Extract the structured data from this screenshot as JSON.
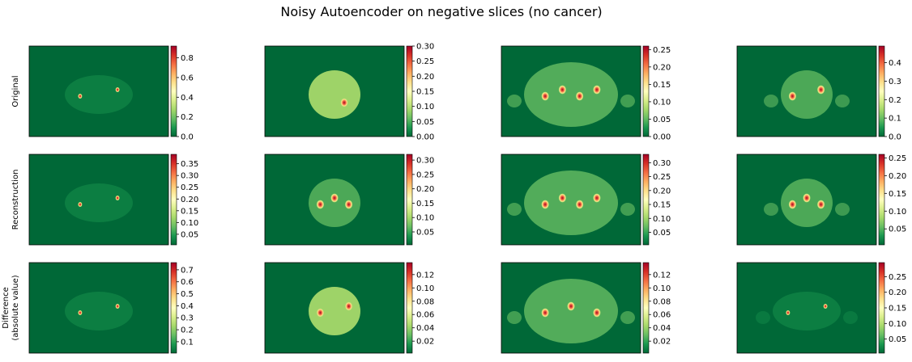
{
  "figure": {
    "title": "Noisy Autoencoder on negative slices (no cancer)"
  },
  "row_labels": [
    "Original",
    "Reconstruction",
    "Difference\n(absolute value)"
  ],
  "colormap": {
    "name": "RdYlGn_r",
    "stops": [
      "#006837",
      "#1a9850",
      "#66bd63",
      "#a6d96a",
      "#d9ef8b",
      "#ffffbf",
      "#fee08b",
      "#fdae61",
      "#f46d43",
      "#d73027",
      "#a50026"
    ]
  },
  "panels": [
    [
      {
        "vmin": 0,
        "vmax": 0.92,
        "ticks": [
          "0.0",
          "0.2",
          "0.4",
          "0.6",
          "0.8"
        ],
        "tick_values": [
          0,
          0.2,
          0.4,
          0.6,
          0.8
        ],
        "body": "faint",
        "hotspots": 2
      },
      {
        "vmin": 0,
        "vmax": 0.3,
        "ticks": [
          "0.00",
          "0.05",
          "0.10",
          "0.15",
          "0.20",
          "0.25",
          "0.30"
        ],
        "tick_values": [
          0,
          0.05,
          0.1,
          0.15,
          0.2,
          0.25,
          0.3
        ],
        "body": "bright",
        "hotspots": 1
      },
      {
        "vmin": 0,
        "vmax": 0.26,
        "ticks": [
          "0.00",
          "0.05",
          "0.10",
          "0.15",
          "0.20",
          "0.25"
        ],
        "tick_values": [
          0,
          0.05,
          0.1,
          0.15,
          0.2,
          0.25
        ],
        "body": "wide",
        "hotspots": 4
      },
      {
        "vmin": 0,
        "vmax": 0.49,
        "ticks": [
          "0.0",
          "0.1",
          "0.2",
          "0.3",
          "0.4"
        ],
        "tick_values": [
          0,
          0.1,
          0.2,
          0.3,
          0.4
        ],
        "body": "medium",
        "hotspots": 2
      }
    ],
    [
      {
        "vmin": 0.005,
        "vmax": 0.39,
        "ticks": [
          "0.05",
          "0.10",
          "0.15",
          "0.20",
          "0.25",
          "0.30",
          "0.35"
        ],
        "tick_values": [
          0.05,
          0.1,
          0.15,
          0.2,
          0.25,
          0.3,
          0.35
        ],
        "body": "faint",
        "hotspots": 2
      },
      {
        "vmin": 0.005,
        "vmax": 0.32,
        "ticks": [
          "0.05",
          "0.10",
          "0.15",
          "0.20",
          "0.25",
          "0.30"
        ],
        "tick_values": [
          0.05,
          0.1,
          0.15,
          0.2,
          0.25,
          0.3
        ],
        "body": "medium",
        "hotspots": 3
      },
      {
        "vmin": 0.005,
        "vmax": 0.33,
        "ticks": [
          "0.05",
          "0.10",
          "0.15",
          "0.20",
          "0.25",
          "0.30"
        ],
        "tick_values": [
          0.05,
          0.1,
          0.15,
          0.2,
          0.25,
          0.3
        ],
        "body": "wide",
        "hotspots": 4
      },
      {
        "vmin": 0.005,
        "vmax": 0.26,
        "ticks": [
          "0.05",
          "0.10",
          "0.15",
          "0.20",
          "0.25"
        ],
        "tick_values": [
          0.05,
          0.1,
          0.15,
          0.2,
          0.25
        ],
        "body": "medium",
        "hotspots": 3
      }
    ],
    [
      {
        "vmin": 0.005,
        "vmax": 0.76,
        "ticks": [
          "0.1",
          "0.2",
          "0.3",
          "0.4",
          "0.5",
          "0.6",
          "0.7"
        ],
        "tick_values": [
          0.1,
          0.2,
          0.3,
          0.4,
          0.5,
          0.6,
          0.7
        ],
        "body": "faint",
        "hotspots": 2
      },
      {
        "vmin": 0.002,
        "vmax": 0.138,
        "ticks": [
          "0.02",
          "0.04",
          "0.06",
          "0.08",
          "0.10",
          "0.12"
        ],
        "tick_values": [
          0.02,
          0.04,
          0.06,
          0.08,
          0.1,
          0.12
        ],
        "body": "bright",
        "hotspots": 2
      },
      {
        "vmin": 0.002,
        "vmax": 0.138,
        "ticks": [
          "0.02",
          "0.04",
          "0.06",
          "0.08",
          "0.10",
          "0.12"
        ],
        "tick_values": [
          0.02,
          0.04,
          0.06,
          0.08,
          0.1,
          0.12
        ],
        "body": "wide",
        "hotspots": 3
      },
      {
        "vmin": 0.005,
        "vmax": 0.295,
        "ticks": [
          "0.05",
          "0.10",
          "0.15",
          "0.20",
          "0.25"
        ],
        "tick_values": [
          0.05,
          0.1,
          0.15,
          0.2,
          0.25
        ],
        "body": "faint",
        "hotspots": 2
      }
    ]
  ]
}
